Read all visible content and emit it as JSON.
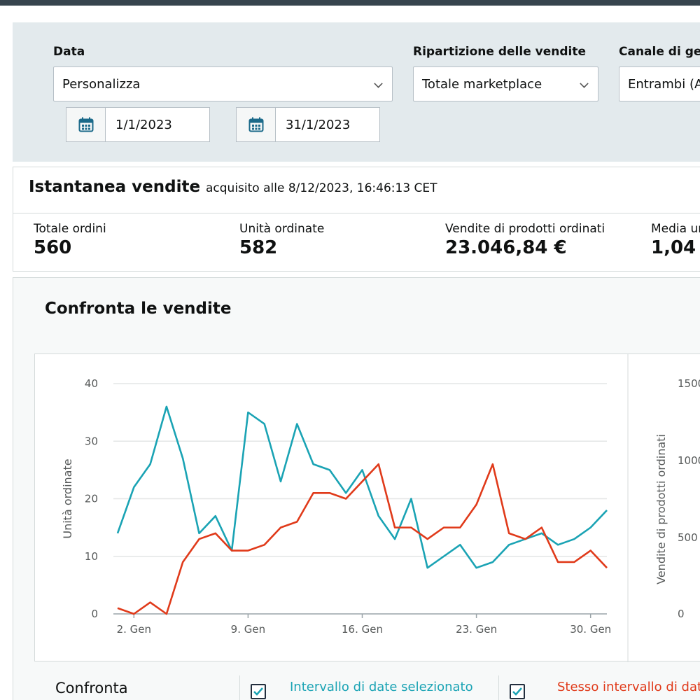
{
  "filters": {
    "date": {
      "label": "Data",
      "value": "Personalizza",
      "start": "1/1/2023",
      "end": "31/1/2023"
    },
    "breakdown": {
      "label": "Ripartizione delle vendite",
      "value": "Totale marketplace"
    },
    "channel": {
      "label": "Canale di ges",
      "value": "Entrambi (A"
    }
  },
  "snapshot": {
    "title": "Istantanea vendite",
    "subtitle": "acquisito alle 8/12/2023, 16:46:13 CET",
    "metrics": [
      {
        "label": "Totale ordini",
        "value": "560"
      },
      {
        "label": "Unità ordinate",
        "value": "582"
      },
      {
        "label": "Vendite di prodotti ordinati",
        "value": "23.046,84 €"
      },
      {
        "label": "Media un",
        "value": "1,04"
      }
    ]
  },
  "compare": {
    "title": "Confronta le vendite",
    "legend_title": "Confronta",
    "legend": [
      {
        "label": "Intervallo di date selezionato",
        "color": "#1aa3b4",
        "checked": true
      },
      {
        "label": "Stesso intervallo di date",
        "color": "#e03a1a",
        "checked": true
      }
    ]
  },
  "colors": {
    "teal": "#1aa3b4",
    "red": "#e03a1a",
    "accent_icon": "#1b6a8a"
  },
  "chart_data": [
    {
      "type": "line",
      "ylabel": "Unità ordinate",
      "ylim": [
        0,
        40
      ],
      "yticks": [
        0,
        10,
        20,
        30,
        40
      ],
      "x": [
        1,
        2,
        3,
        4,
        5,
        6,
        7,
        8,
        9,
        10,
        11,
        12,
        13,
        14,
        15,
        16,
        17,
        18,
        19,
        20,
        21,
        22,
        23,
        24,
        25,
        26,
        27,
        28,
        29,
        30,
        31
      ],
      "xticks": [
        {
          "day": 2,
          "label": "2. Gen"
        },
        {
          "day": 9,
          "label": "9. Gen"
        },
        {
          "day": 16,
          "label": "16. Gen"
        },
        {
          "day": 23,
          "label": "23. Gen"
        },
        {
          "day": 30,
          "label": "30. Gen"
        }
      ],
      "grid": true,
      "series": [
        {
          "values": [
            14,
            22,
            26,
            36,
            27,
            14,
            17,
            11,
            35,
            33,
            23,
            33,
            26,
            25,
            21,
            25,
            17,
            13,
            20,
            8,
            10,
            12,
            8,
            9,
            12,
            13,
            14,
            12,
            13,
            15,
            18
          ],
          "color": "#1aa3b4"
        },
        {
          "values": [
            1,
            0,
            2,
            0,
            9,
            13,
            14,
            11,
            11,
            12,
            15,
            16,
            21,
            21,
            20,
            23,
            26,
            15,
            15,
            13,
            15,
            15,
            19,
            26,
            14,
            13,
            15,
            9,
            9,
            11,
            8
          ],
          "color": "#e03a1a"
        }
      ]
    },
    {
      "type": "line",
      "ylabel": "Vendite di prodotti ordinati",
      "yticks": [
        "1500",
        "1000",
        "500",
        "0"
      ]
    }
  ]
}
